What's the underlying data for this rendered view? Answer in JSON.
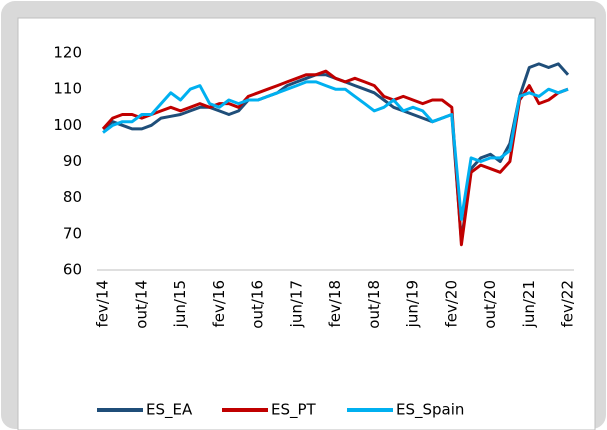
{
  "chart_data": {
    "type": "line",
    "categories": [
      "fev/14",
      null,
      null,
      null,
      "out/14",
      null,
      null,
      null,
      "jun/15",
      null,
      null,
      null,
      "fev/16",
      null,
      null,
      null,
      "out/16",
      null,
      null,
      null,
      "jun/17",
      null,
      null,
      null,
      "fev/18",
      null,
      null,
      null,
      "out/18",
      null,
      null,
      null,
      "jun/19",
      null,
      null,
      null,
      "fev/20",
      null,
      null,
      null,
      "out/20",
      null,
      null,
      null,
      "jun/21",
      null,
      null,
      null,
      "fev/22"
    ],
    "series": [
      {
        "name": "ES_EA",
        "color": "#1f4e79",
        "values": [
          99,
          101,
          100,
          99,
          99,
          100,
          102,
          102.5,
          103,
          104,
          105,
          105,
          104,
          103,
          104,
          107,
          107,
          108,
          109,
          111,
          112,
          113,
          114,
          114,
          113,
          112,
          111,
          110,
          109,
          107,
          105,
          104,
          103,
          102,
          101,
          102,
          103,
          68,
          88,
          91,
          92,
          90,
          95,
          108,
          116,
          117,
          116,
          117,
          114
        ]
      },
      {
        "name": "ES_PT",
        "color": "#c00000",
        "values": [
          99,
          102,
          103,
          103,
          102,
          103,
          104,
          105,
          104,
          105,
          106,
          105,
          106,
          106,
          105,
          108,
          109,
          110,
          111,
          112,
          113,
          114,
          114,
          115,
          113,
          112,
          113,
          112,
          111,
          108,
          107,
          108,
          107,
          106,
          107,
          107,
          105,
          67,
          87,
          89,
          88,
          87,
          90,
          107,
          111,
          106,
          107,
          109,
          110
        ]
      },
      {
        "name": "ES_Spain",
        "color": "#00b0f0",
        "values": [
          98,
          100,
          101,
          101,
          103,
          103,
          106,
          109,
          107,
          110,
          111,
          106,
          105,
          107,
          106,
          107,
          107,
          108,
          109,
          110,
          111,
          112,
          112,
          111,
          110,
          110,
          108,
          106,
          104,
          105,
          107,
          104,
          105,
          104,
          101,
          102,
          103,
          74,
          91,
          90,
          91,
          91,
          93,
          108,
          109,
          108,
          110,
          109,
          110
        ]
      }
    ],
    "ylim": [
      60,
      120
    ],
    "yticks": [
      60,
      70,
      80,
      90,
      100,
      110,
      120
    ]
  }
}
